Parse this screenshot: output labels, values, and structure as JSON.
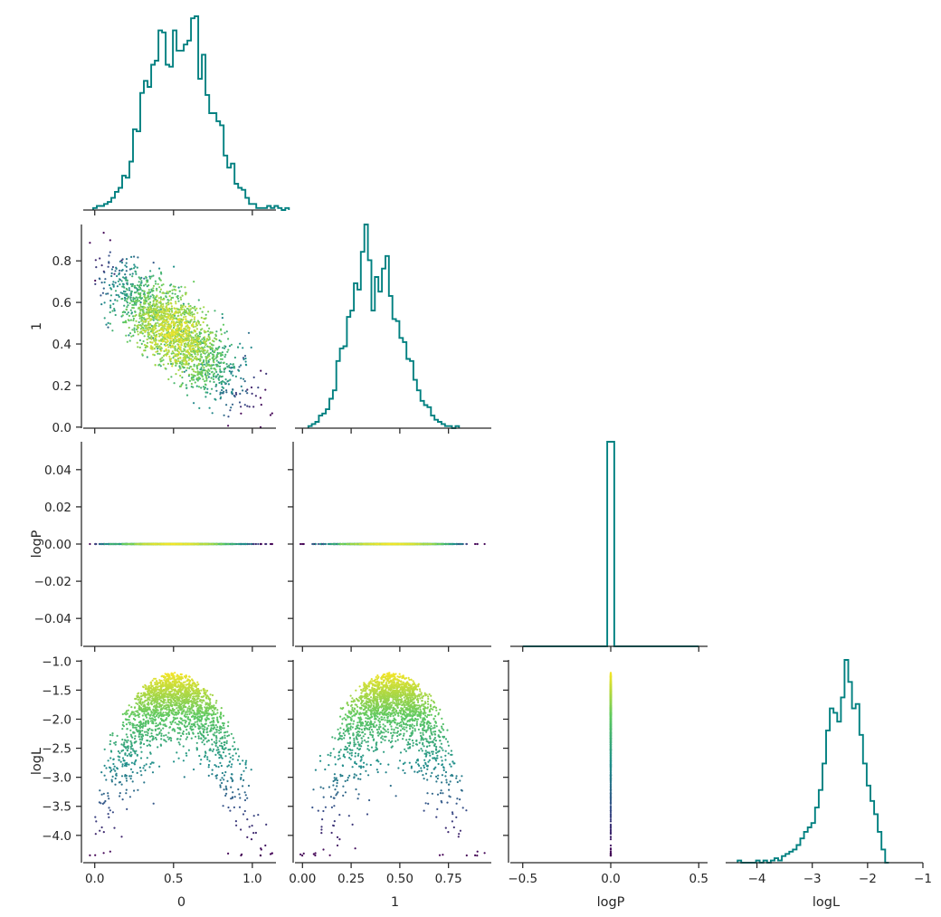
{
  "chart_data": {
    "type": "corner-plot",
    "title": "",
    "parameters": [
      "0",
      "1",
      "logP",
      "logL"
    ],
    "colormap": [
      "#440154",
      "#3b528b",
      "#21918c",
      "#5ec962",
      "#fde725"
    ],
    "colormap_name": "viridis",
    "color_by": "logL",
    "hist_color": "#008080",
    "marginals": {
      "0": {
        "type": "step-histogram",
        "x_range": [
          -0.01,
          1.13
        ],
        "bin_width": 0.023,
        "counts": [
          1,
          2,
          2,
          3,
          4,
          6,
          9,
          11,
          17,
          16,
          24,
          40,
          39,
          58,
          64,
          61,
          72,
          74,
          89,
          88,
          72,
          71,
          89,
          79,
          79,
          82,
          84,
          95,
          96,
          65,
          77,
          57,
          48,
          48,
          44,
          42,
          27,
          21,
          23,
          13,
          11,
          10,
          6,
          3,
          3,
          1,
          1,
          1,
          2,
          1,
          2,
          1,
          0,
          1
        ]
      },
      "1": {
        "type": "step-histogram",
        "x_range": [
          0.03,
          0.93
        ],
        "bin_width": 0.018,
        "counts": [
          1,
          2,
          3,
          6,
          7,
          9,
          14,
          18,
          32,
          38,
          39,
          53,
          56,
          69,
          66,
          84,
          97,
          80,
          56,
          72,
          65,
          76,
          82,
          63,
          52,
          51,
          43,
          41,
          33,
          32,
          23,
          18,
          13,
          11,
          10,
          6,
          4,
          3,
          2,
          1,
          1,
          0,
          1
        ]
      },
      "logP": {
        "type": "step-histogram",
        "x_range": [
          -0.5,
          0.5
        ],
        "bin_edges": [
          -0.02,
          0.02
        ],
        "counts": [
          1
        ]
      },
      "logL": {
        "type": "step-histogram",
        "x_range": [
          -4.35,
          -1.15
        ],
        "bin_width": 0.0667,
        "counts": [
          1,
          0,
          0,
          0,
          0,
          1,
          0,
          1,
          0,
          1,
          2,
          1,
          3,
          4,
          5,
          6,
          8,
          11,
          14,
          16,
          18,
          25,
          33,
          45,
          60,
          70,
          68,
          64,
          75,
          92,
          82,
          70,
          72,
          58,
          45,
          35,
          28,
          22,
          14,
          6,
          0
        ]
      }
    },
    "scatter": {
      "n_points": 2000,
      "x_0_vs_1_correlation": -0.75,
      "0_mean": 0.5,
      "0_std": 0.2,
      "1_mean": 0.46,
      "1_std": 0.15,
      "logP_value": 0,
      "logL_peak": -1.2,
      "logL_range": [
        -4.35,
        -1.15
      ]
    },
    "axes": {
      "0": {
        "xlim": [
          -0.05,
          1.15
        ],
        "ticks": [
          0.0,
          0.5,
          1.0
        ],
        "tick_labels": [
          "0.0",
          "0.5",
          "1.0"
        ],
        "label": "0"
      },
      "1": {
        "xlim": [
          -0.02,
          0.97
        ],
        "ylim": [
          -0.005,
          0.975
        ],
        "ticks": [
          0.0,
          0.25,
          0.5,
          0.75
        ],
        "tick_labels": [
          "0.00",
          "0.25",
          "0.50",
          "0.75"
        ],
        "y_ticks": [
          0.0,
          0.2,
          0.4,
          0.6,
          0.8
        ],
        "y_tick_labels": [
          "0.0",
          "0.2",
          "0.4",
          "0.6",
          "0.8"
        ],
        "label": "1"
      },
      "logP": {
        "xlim": [
          -0.55,
          0.55
        ],
        "ylim": [
          -0.055,
          0.055
        ],
        "ticks": [
          -0.5,
          0.0,
          0.5
        ],
        "tick_labels": [
          "−0.5",
          "0.0",
          "0.5"
        ],
        "y_ticks": [
          -0.04,
          -0.02,
          0.0,
          0.02,
          0.04
        ],
        "y_tick_labels": [
          "−0.04",
          "−0.02",
          "0.00",
          "0.02",
          "0.04"
        ],
        "label": "logP"
      },
      "logL": {
        "xlim": [
          -4.5,
          -1.0
        ],
        "ylim": [
          -4.47,
          -0.98
        ],
        "ticks": [
          -4,
          -3,
          -2,
          -1
        ],
        "tick_labels": [
          "−4",
          "−3",
          "−2",
          "−1"
        ],
        "y_ticks": [
          -4.0,
          -3.5,
          -3.0,
          -2.5,
          -2.0,
          -1.5,
          -1.0
        ],
        "y_tick_labels": [
          "−4.0",
          "−3.5",
          "−3.0",
          "−2.5",
          "−2.0",
          "−1.5",
          "−1.0"
        ],
        "label": "logL"
      }
    },
    "grid": false,
    "legend": "none"
  }
}
